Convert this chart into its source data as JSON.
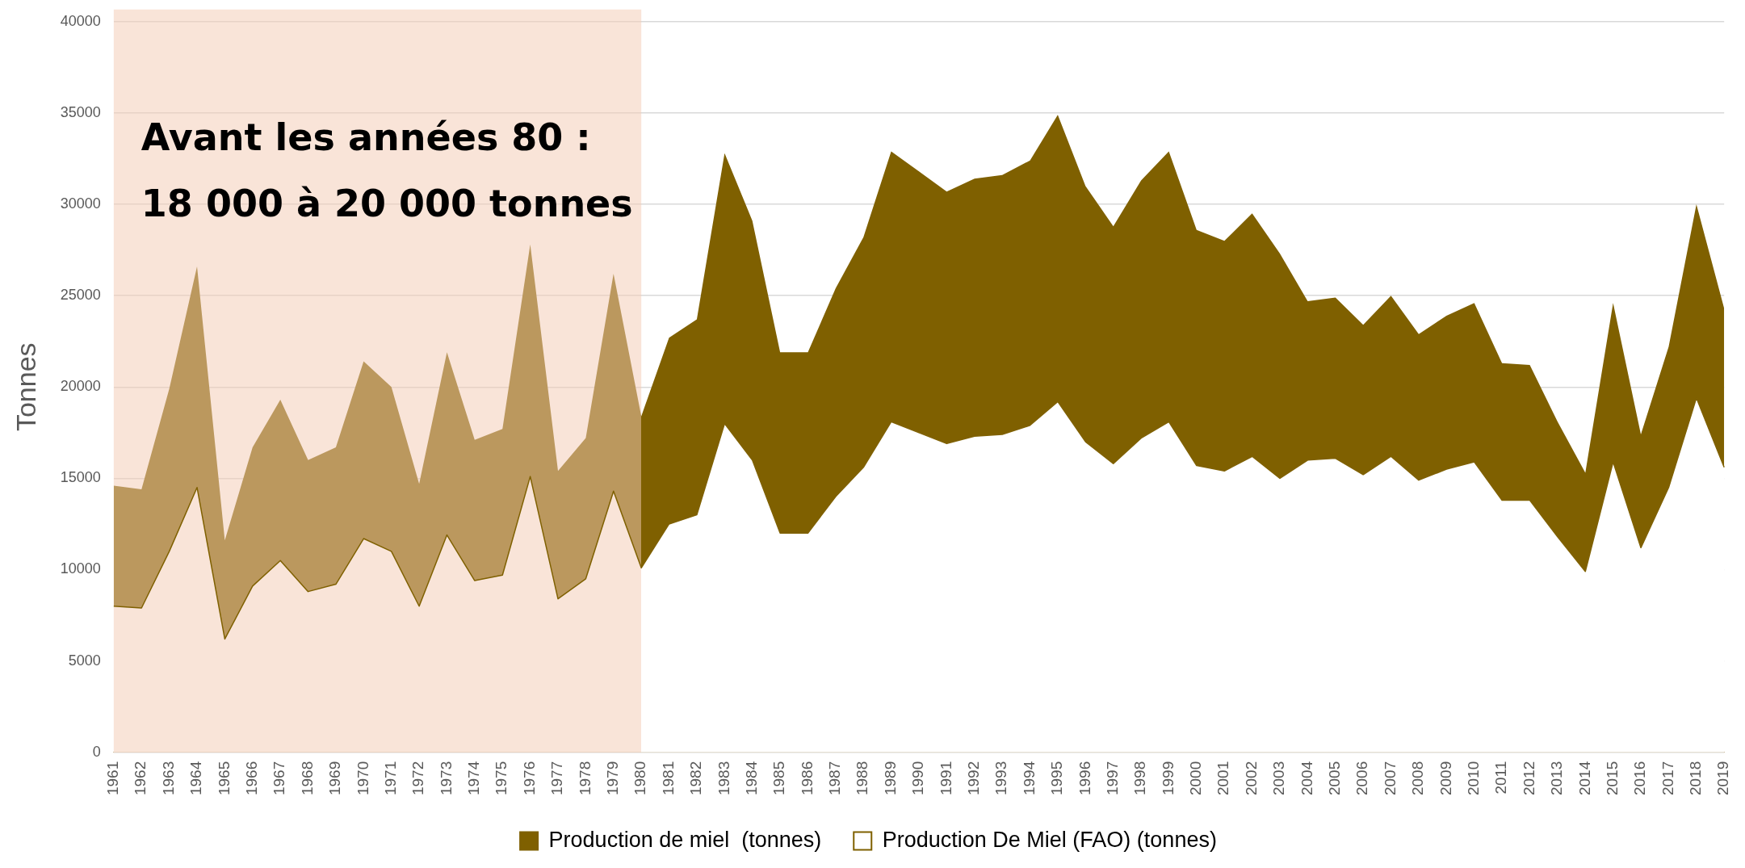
{
  "chart_data": {
    "type": "area",
    "stacked": true,
    "ylabel": "Tonnes",
    "categories": [
      "1961",
      "1962",
      "1963",
      "1964",
      "1965",
      "1966",
      "1967",
      "1968",
      "1969",
      "1970",
      "1971",
      "1972",
      "1973",
      "1974",
      "1975",
      "1976",
      "1977",
      "1978",
      "1979",
      "1980",
      "1981",
      "1982",
      "1983",
      "1984",
      "1985",
      "1986",
      "1987",
      "1988",
      "1989",
      "1990",
      "1991",
      "1992",
      "1993",
      "1994",
      "1995",
      "1996",
      "1997",
      "1998",
      "1999",
      "2000",
      "2001",
      "2002",
      "2003",
      "2004",
      "2005",
      "2006",
      "2007",
      "2008",
      "2009",
      "2010",
      "2011",
      "2012",
      "2013",
      "2014",
      "2015",
      "2016",
      "2017",
      "2018",
      "2019"
    ],
    "series": [
      {
        "name": "Production De Miel (FAO) (tonnes)",
        "color": "#7f6000",
        "values": [
          8000,
          7900,
          11000,
          14500,
          6200,
          9100,
          10500,
          8800,
          9200,
          11700,
          11000,
          8000,
          11900,
          9400,
          9700,
          15100,
          8400,
          9500,
          14300,
          10100,
          12500,
          13000,
          18000,
          16000,
          12000,
          12000,
          14000,
          15600,
          18100,
          17500,
          16900,
          17300,
          17400,
          17900,
          19200,
          17000,
          15800,
          17200,
          18100,
          15700,
          15400,
          16200,
          15000,
          16000,
          16100,
          15200,
          16200,
          14900,
          15500,
          15900,
          13800,
          13800,
          11800,
          9900,
          15900,
          11200,
          14500,
          19400,
          15600
        ]
      },
      {
        "name": "Production de miel  (tonnes)",
        "color": "#7f6000",
        "values": [
          6600,
          6500,
          8900,
          12100,
          5400,
          7600,
          8800,
          7200,
          7500,
          9700,
          9000,
          6700,
          10000,
          7700,
          8000,
          12700,
          7000,
          7700,
          11900,
          8300,
          10200,
          10700,
          14800,
          13100,
          9900,
          9900,
          11400,
          12600,
          14800,
          14300,
          13800,
          14100,
          14200,
          14500,
          15700,
          14000,
          13000,
          14100,
          14800,
          12900,
          12600,
          13300,
          12300,
          8700,
          8800,
          8200,
          8800,
          8000,
          8400,
          8700,
          7500,
          7400,
          6300,
          5400,
          8700,
          6200,
          7700,
          10600,
          8700
        ]
      }
    ],
    "ylim": [
      0,
      40000
    ],
    "yticks": [
      0,
      5000,
      10000,
      15000,
      20000,
      25000,
      30000,
      35000,
      40000
    ],
    "grid": "y",
    "legend": "bottom",
    "bands": [
      {
        "axis": "x",
        "from": "1961",
        "to": "1980",
        "color": "#f3cbb4",
        "label": "Avant les années 80 :\n18 000 à 20 000 tonnes"
      }
    ]
  }
}
